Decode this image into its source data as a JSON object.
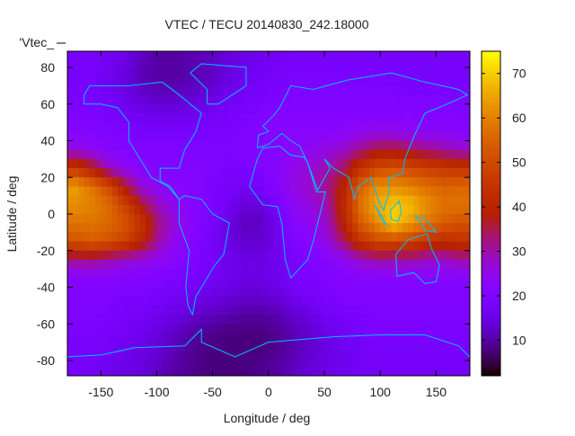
{
  "chart_data": {
    "type": "heatmap",
    "title": "VTEC / TECU 20140830_242.18000",
    "xlabel": "Longitude / deg",
    "ylabel": "Latitude / deg",
    "key_label": "'Vtec_",
    "xlim": [
      -180,
      180
    ],
    "ylim": [
      -90,
      90
    ],
    "zlim": [
      2,
      75
    ],
    "xticks": [
      -150,
      -100,
      -50,
      0,
      50,
      100,
      150
    ],
    "yticks": [
      -80,
      -60,
      -40,
      -20,
      0,
      20,
      40,
      60,
      80
    ],
    "cbticks": [
      10,
      20,
      30,
      40,
      50,
      60,
      70
    ],
    "grid": false,
    "colorbar": "right",
    "lon_centers": [
      -172.5,
      -157.5,
      -142.5,
      -127.5,
      -112.5,
      -97.5,
      -82.5,
      -67.5,
      -52.5,
      -37.5,
      -22.5,
      -7.5,
      7.5,
      22.5,
      37.5,
      52.5,
      67.5,
      82.5,
      97.5,
      112.5,
      127.5,
      142.5,
      157.5,
      172.5
    ],
    "lat_centers": [
      85,
      75,
      65,
      55,
      45,
      35,
      25,
      15,
      5,
      -5,
      -15,
      -25,
      -35,
      -45,
      -55,
      -65,
      -75,
      -85
    ],
    "values": [
      [
        18,
        18,
        17,
        15,
        12,
        10,
        10,
        11,
        12,
        14,
        15,
        16,
        17,
        18,
        18,
        18,
        18,
        18,
        18,
        18,
        18,
        18,
        18,
        18
      ],
      [
        18,
        18,
        16,
        14,
        11,
        10,
        10,
        11,
        12,
        14,
        16,
        17,
        18,
        19,
        19,
        19,
        19,
        19,
        19,
        18,
        18,
        18,
        18,
        18
      ],
      [
        19,
        18,
        17,
        15,
        13,
        12,
        12,
        13,
        14,
        16,
        17,
        18,
        19,
        20,
        20,
        20,
        20,
        20,
        20,
        20,
        19,
        19,
        19,
        19
      ],
      [
        20,
        19,
        18,
        17,
        16,
        15,
        15,
        16,
        17,
        18,
        19,
        20,
        21,
        21,
        21,
        21,
        21,
        21,
        21,
        21,
        21,
        21,
        21,
        20
      ],
      [
        22,
        21,
        20,
        19,
        18,
        18,
        18,
        18,
        19,
        19,
        20,
        21,
        22,
        22,
        22,
        22,
        23,
        24,
        25,
        25,
        24,
        23,
        23,
        22
      ],
      [
        26,
        24,
        22,
        21,
        20,
        20,
        20,
        20,
        20,
        20,
        20,
        21,
        22,
        23,
        24,
        26,
        28,
        32,
        36,
        36,
        34,
        32,
        30,
        28
      ],
      [
        45,
        38,
        28,
        24,
        22,
        21,
        21,
        21,
        20,
        19,
        19,
        20,
        22,
        25,
        27,
        30,
        34,
        44,
        50,
        52,
        50,
        48,
        46,
        45
      ],
      [
        64,
        58,
        50,
        36,
        26,
        23,
        22,
        22,
        20,
        18,
        17,
        18,
        22,
        26,
        28,
        32,
        40,
        55,
        62,
        62,
        60,
        57,
        55,
        56
      ],
      [
        62,
        60,
        56,
        48,
        36,
        28,
        24,
        22,
        20,
        17,
        14,
        14,
        18,
        24,
        26,
        30,
        42,
        58,
        66,
        70,
        68,
        62,
        58,
        58
      ],
      [
        58,
        58,
        56,
        52,
        44,
        32,
        26,
        22,
        19,
        15,
        12,
        12,
        16,
        22,
        24,
        28,
        40,
        54,
        62,
        70,
        64,
        58,
        54,
        52
      ],
      [
        52,
        54,
        52,
        48,
        40,
        30,
        24,
        21,
        18,
        15,
        13,
        13,
        16,
        20,
        22,
        26,
        34,
        44,
        50,
        50,
        48,
        44,
        42,
        44
      ],
      [
        32,
        32,
        30,
        28,
        26,
        24,
        22,
        20,
        18,
        16,
        15,
        15,
        16,
        18,
        20,
        22,
        24,
        28,
        30,
        30,
        30,
        28,
        28,
        30
      ],
      [
        22,
        22,
        22,
        21,
        21,
        20,
        19,
        18,
        17,
        16,
        15,
        15,
        16,
        18,
        19,
        20,
        21,
        22,
        22,
        22,
        22,
        22,
        22,
        22
      ],
      [
        20,
        20,
        20,
        19,
        19,
        18,
        17,
        16,
        15,
        14,
        13,
        13,
        14,
        16,
        18,
        19,
        20,
        20,
        20,
        20,
        20,
        20,
        20,
        20
      ],
      [
        20,
        20,
        19,
        18,
        17,
        16,
        15,
        13,
        12,
        11,
        10,
        10,
        11,
        13,
        15,
        17,
        18,
        19,
        20,
        20,
        20,
        20,
        20,
        20
      ],
      [
        19,
        19,
        18,
        17,
        16,
        14,
        12,
        10,
        9,
        8,
        8,
        8,
        9,
        11,
        13,
        15,
        17,
        18,
        19,
        19,
        19,
        19,
        19,
        19
      ],
      [
        18,
        18,
        17,
        16,
        15,
        13,
        11,
        9,
        8,
        8,
        8,
        8,
        9,
        11,
        13,
        15,
        16,
        17,
        18,
        18,
        18,
        18,
        18,
        18
      ],
      [
        18,
        17,
        16,
        15,
        14,
        12,
        10,
        9,
        8,
        8,
        8,
        9,
        10,
        12,
        14,
        15,
        16,
        17,
        17,
        17,
        17,
        17,
        17,
        17
      ]
    ],
    "coastline_color": "#00bfff"
  }
}
